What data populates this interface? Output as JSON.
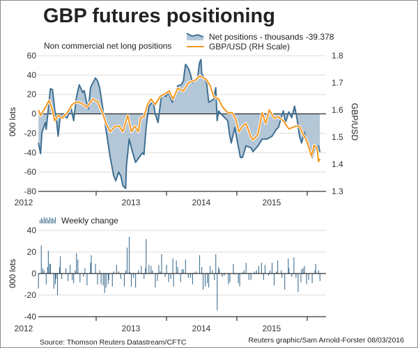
{
  "colors": {
    "area_fill": "#b4c7d7",
    "net_line": "#3f6f92",
    "fx_line": "#f5961c",
    "grid": "#dcdcdc",
    "bars": "#3f6f92"
  },
  "chart_data": [
    {
      "type": "area+line",
      "title": "GBP futures positioning",
      "subtitle": "Non commercial net long positions",
      "ylabel": "000 lots",
      "y2label": "GBP/USD",
      "ylim": [
        -80,
        60
      ],
      "yticks": [
        60,
        40,
        20,
        0,
        -20,
        -40,
        -60,
        -80
      ],
      "y2lim": [
        1.3,
        1.8
      ],
      "y2ticks": [
        "1.8",
        "1.7",
        "1.6",
        "1.5",
        "1.4",
        "1.3"
      ],
      "xlim": [
        2012.2,
        2016.27
      ],
      "xticks": [
        2013,
        2014,
        2015,
        2016
      ],
      "xlabels": [
        "2012",
        "2013",
        "2014",
        "2015"
      ],
      "grid": true,
      "legend_placement": "top-right",
      "series": [
        {
          "name": "Net positions - thousands -39.378",
          "axis": "left",
          "style": "area",
          "x": [
            2012.18,
            2012.21,
            2012.23,
            2012.28,
            2012.29,
            2012.33,
            2012.35,
            2012.38,
            2012.41,
            2012.44,
            2012.46,
            2012.49,
            2012.59,
            2012.64,
            2012.68,
            2012.72,
            2012.76,
            2012.81,
            2012.83,
            2012.87,
            2012.89,
            2012.92,
            2012.99,
            2013.02,
            2013.05,
            2013.1,
            2013.15,
            2013.2,
            2013.25,
            2013.28,
            2013.32,
            2013.35,
            2013.38,
            2013.42,
            2013.43,
            2013.47,
            2013.5,
            2013.56,
            2013.61,
            2013.66,
            2013.68,
            2013.71,
            2013.75,
            2013.81,
            2013.84,
            2013.88,
            2013.93,
            2013.99,
            2014.03,
            2014.08,
            2014.11,
            2014.16,
            2014.21,
            2014.24,
            2014.27,
            2014.31,
            2014.34,
            2014.37,
            2014.41,
            2014.44,
            2014.47,
            2014.49,
            2014.5,
            2014.54,
            2014.57,
            2014.6,
            2014.67,
            2014.7,
            2014.72,
            2014.74,
            2014.8,
            2014.87,
            2014.9,
            2014.92,
            2014.97,
            2015.0,
            2015.05,
            2015.08,
            2015.13,
            2015.2,
            2015.23,
            2015.3,
            2015.36,
            2015.43,
            2015.5,
            2015.56,
            2015.59,
            2015.66,
            2015.69,
            2015.74,
            2015.78,
            2015.82,
            2015.86,
            2015.89,
            2015.92,
            2015.96,
            2015.99,
            2016.04,
            2016.07,
            2016.11,
            2016.14,
            2016.16,
            2016.18
          ],
          "y": [
            -30,
            -41,
            -19,
            -9,
            -16,
            12,
            26,
            25,
            5,
            -9,
            -23,
            -2,
            -4,
            8,
            -7,
            17,
            30,
            22,
            24,
            10,
            5,
            27,
            37,
            34,
            27,
            3,
            -21,
            -45,
            -64,
            -69,
            -60,
            -64,
            -74,
            -77,
            -54,
            -26,
            -35,
            -50,
            -45,
            -40,
            -42,
            -14,
            8,
            13,
            0,
            -9,
            20,
            18,
            22,
            12,
            17,
            29,
            30,
            34,
            51,
            47,
            41,
            32,
            36,
            36,
            53,
            56,
            42,
            36,
            32,
            12,
            15,
            27,
            -7,
            3,
            -2,
            -7,
            -23,
            -30,
            -14,
            -26,
            -45,
            -45,
            -33,
            -35,
            -39,
            -33,
            -26,
            -26,
            -23,
            -16,
            -14,
            3,
            -9,
            2,
            -4,
            8,
            -7,
            -23,
            -30,
            -19,
            -30,
            -35,
            -45,
            -35,
            -35,
            -33,
            -39.378
          ]
        },
        {
          "name": "GBP/USD (RH Scale)",
          "axis": "right",
          "style": "line",
          "x": [
            2012.18,
            2012.21,
            2012.28,
            2012.33,
            2012.38,
            2012.41,
            2012.46,
            2012.52,
            2012.59,
            2012.66,
            2012.72,
            2012.79,
            2012.87,
            2012.95,
            2013.02,
            2013.09,
            2013.14,
            2013.2,
            2013.27,
            2013.33,
            2013.38,
            2013.45,
            2013.5,
            2013.55,
            2013.6,
            2013.63,
            2013.68,
            2013.73,
            2013.78,
            2013.84,
            2013.91,
            2013.98,
            2014.04,
            2014.09,
            2014.16,
            2014.24,
            2014.31,
            2014.41,
            2014.47,
            2014.52,
            2014.57,
            2014.62,
            2014.67,
            2014.74,
            2014.8,
            2014.87,
            2014.93,
            2014.98,
            2015.03,
            2015.08,
            2015.13,
            2015.2,
            2015.23,
            2015.3,
            2015.36,
            2015.41,
            2015.46,
            2015.53,
            2015.59,
            2015.66,
            2015.74,
            2015.83,
            2015.89,
            2015.94,
            2015.99,
            2016.06,
            2016.1,
            2016.14,
            2016.16,
            2016.18
          ],
          "y": [
            1.6,
            1.58,
            1.61,
            1.635,
            1.6,
            1.56,
            1.58,
            1.57,
            1.59,
            1.62,
            1.63,
            1.625,
            1.61,
            1.64,
            1.63,
            1.59,
            1.55,
            1.52,
            1.54,
            1.54,
            1.52,
            1.58,
            1.52,
            1.54,
            1.52,
            1.57,
            1.575,
            1.62,
            1.64,
            1.62,
            1.65,
            1.66,
            1.67,
            1.64,
            1.68,
            1.67,
            1.7,
            1.71,
            1.725,
            1.72,
            1.71,
            1.69,
            1.65,
            1.64,
            1.61,
            1.59,
            1.59,
            1.57,
            1.52,
            1.54,
            1.55,
            1.5,
            1.49,
            1.51,
            1.59,
            1.55,
            1.6,
            1.57,
            1.575,
            1.56,
            1.53,
            1.54,
            1.54,
            1.51,
            1.49,
            1.43,
            1.47,
            1.46,
            1.41,
            1.42
          ]
        }
      ]
    },
    {
      "type": "bar",
      "ylabel": "000 lots",
      "ylim": [
        -40,
        40
      ],
      "yticks": [
        40,
        20,
        0,
        -20,
        -40
      ],
      "xlim": [
        2012.2,
        2016.27
      ],
      "xticks": [
        2013,
        2014,
        2015,
        2016
      ],
      "xlabels": [
        "2012",
        "2013",
        "2014",
        "2015"
      ],
      "grid": true,
      "legend_placement": "top-left",
      "series": [
        {
          "name": "Weekly change",
          "x": [
            2012.18,
            2012.22,
            2012.24,
            2012.26,
            2012.29,
            2012.31,
            2012.32,
            2012.34,
            2012.35,
            2012.4,
            2012.42,
            2012.43,
            2012.45,
            2012.48,
            2012.49,
            2012.51,
            2012.57,
            2012.6,
            2012.63,
            2012.66,
            2012.68,
            2012.7,
            2012.72,
            2012.74,
            2012.77,
            2012.82,
            2012.84,
            2012.87,
            2012.92,
            2012.93,
            2012.99,
            2013.02,
            2013.05,
            2013.07,
            2013.1,
            2013.12,
            2013.14,
            2013.17,
            2013.18,
            2013.23,
            2013.25,
            2013.29,
            2013.32,
            2013.35,
            2013.4,
            2013.42,
            2013.44,
            2013.47,
            2013.48,
            2013.5,
            2013.53,
            2013.56,
            2013.6,
            2013.64,
            2013.68,
            2013.7,
            2013.71,
            2013.75,
            2013.78,
            2013.8,
            2013.84,
            2013.87,
            2013.89,
            2013.91,
            2013.93,
            2013.98,
            2014.0,
            2014.03,
            2014.06,
            2014.09,
            2014.1,
            2014.14,
            2014.16,
            2014.2,
            2014.22,
            2014.24,
            2014.27,
            2014.31,
            2014.34,
            2014.37,
            2014.39,
            2014.42,
            2014.47,
            2014.5,
            2014.52,
            2014.55,
            2014.58,
            2014.6,
            2014.62,
            2014.65,
            2014.68,
            2014.7,
            2014.72,
            2014.74,
            2014.75,
            2014.79,
            2014.82,
            2014.88,
            2014.9,
            2014.95,
            2014.97,
            2015.02,
            2015.04,
            2015.08,
            2015.1,
            2015.13,
            2015.17,
            2015.2,
            2015.25,
            2015.28,
            2015.31,
            2015.35,
            2015.38,
            2015.4,
            2015.45,
            2015.47,
            2015.5,
            2015.53,
            2015.56,
            2015.58,
            2015.63,
            2015.64,
            2015.68,
            2015.73,
            2015.74,
            2015.78,
            2015.81,
            2015.84,
            2015.87,
            2015.91,
            2015.92,
            2015.94,
            2015.96,
            2015.99,
            2016.02,
            2016.07,
            2016.11,
            2016.12,
            2016.16,
            2016.18
          ],
          "y": [
            -14,
            26,
            5,
            3,
            -10,
            6,
            21,
            9,
            9,
            -14,
            -10,
            -5,
            -20,
            6,
            16,
            -5,
            5,
            -7,
            8,
            -6,
            -9,
            3,
            19,
            13,
            -8,
            -3,
            5,
            -11,
            10,
            17,
            9,
            -10,
            3,
            -10,
            -11,
            -18,
            -13,
            -10,
            -6,
            -12,
            2,
            8,
            2,
            -5,
            -12,
            3,
            24,
            34,
            1,
            -12,
            -4,
            -13,
            3,
            7,
            -5,
            5,
            32,
            8,
            7,
            3,
            -13,
            -7,
            8,
            2,
            18,
            -3,
            8,
            -8,
            -5,
            14,
            -12,
            12,
            6,
            -8,
            4,
            4,
            13,
            -4,
            -4,
            -10,
            1,
            2,
            17,
            6,
            -15,
            -12,
            -9,
            -13,
            7,
            3,
            -6,
            18,
            -34,
            6,
            4,
            -3,
            -2,
            -10,
            -8,
            9,
            -1,
            -9,
            -12,
            1,
            3,
            10,
            -6,
            -6,
            2,
            3,
            7,
            10,
            -6,
            8,
            -2,
            3,
            10,
            -11,
            2,
            12,
            3,
            -4,
            -15,
            14,
            5,
            -3,
            15,
            -4,
            -17,
            -8,
            4,
            5,
            7,
            -10,
            -6,
            -9,
            3,
            9,
            3,
            -7
          ]
        }
      ]
    }
  ],
  "footer": {
    "source": "Source: Thomson Reuters Datastream/CFTC",
    "credit": "Reuters graphic/Sam Arnold-Forster 08/03/2016"
  }
}
